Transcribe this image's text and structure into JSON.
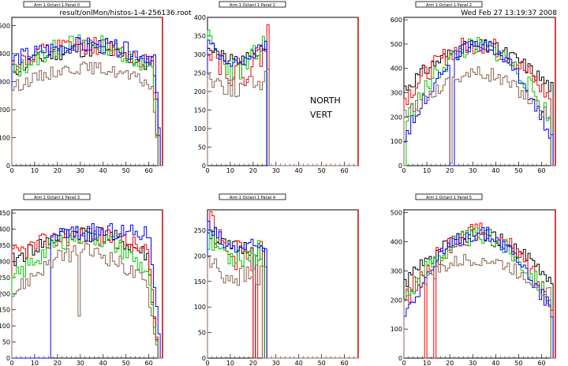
{
  "header": {
    "filename": "result/onlMon/histos-1-4-256136.root",
    "timestamp": "Wed Feb 27 13:19:37 2008"
  },
  "annotations": {
    "line1": "NORTH",
    "line2": "VERT"
  },
  "colors": {
    "black": "#000000",
    "red": "#ff0000",
    "green": "#00c800",
    "blue": "#0000ff",
    "brown": "#8b6450",
    "frame_right": "#c80000"
  },
  "chart_data": [
    {
      "type": "line",
      "title": "Arm 1 Octant 1 Panel 0",
      "xlim": [
        0,
        66
      ],
      "ylim": [
        0,
        530
      ],
      "xticks": [
        0,
        10,
        20,
        30,
        40,
        50,
        60
      ],
      "yticks": [
        0,
        100,
        200,
        300,
        400,
        500
      ],
      "series": [
        {
          "color": "black",
          "shape": "arch",
          "start": 0,
          "end": 65,
          "plateau": 415,
          "edge": 340,
          "noise": 28,
          "tail": 2,
          "seed": 11,
          "dips": []
        },
        {
          "color": "red",
          "shape": "arch",
          "start": 0,
          "end": 64,
          "plateau": 430,
          "edge": 360,
          "noise": 32,
          "tail": 2,
          "seed": 12,
          "dips": []
        },
        {
          "color": "green",
          "shape": "arch",
          "start": 0,
          "end": 64,
          "plateau": 440,
          "edge": 330,
          "noise": 34,
          "tail": 2,
          "seed": 13,
          "dips": []
        },
        {
          "color": "blue",
          "shape": "arch",
          "start": 0,
          "end": 65,
          "plateau": 430,
          "edge": 380,
          "noise": 30,
          "tail": 2,
          "seed": 14,
          "dips": []
        },
        {
          "color": "brown",
          "shape": "arch",
          "start": 0,
          "end": 64,
          "plateau": 350,
          "edge": 280,
          "noise": 22,
          "tail": 2,
          "seed": 15,
          "dips": []
        }
      ]
    },
    {
      "type": "line",
      "title": "Arm 1 Octant 1 Panel 1",
      "xlim": [
        0,
        66
      ],
      "ylim": [
        0,
        400
      ],
      "xticks": [
        0,
        10,
        20,
        30,
        40,
        50,
        60
      ],
      "yticks": [
        0,
        50,
        100,
        150,
        200,
        250,
        300,
        350,
        400
      ],
      "series": [
        {
          "color": "black",
          "shape": "bowl",
          "start": 0,
          "end": 26,
          "plateau": 280,
          "edge": 325,
          "noise": 18,
          "tail": 0,
          "seed": 21,
          "dips": []
        },
        {
          "color": "red",
          "shape": "bowl",
          "start": 0,
          "end": 27,
          "plateau": 250,
          "edge": 330,
          "noise": 40,
          "tail": 0,
          "seed": 22,
          "dips": [],
          "spike": [
            26,
            380
          ]
        },
        {
          "color": "green",
          "shape": "bowl",
          "start": 0,
          "end": 26,
          "plateau": 260,
          "edge": 335,
          "noise": 35,
          "tail": 0,
          "seed": 23,
          "dips": []
        },
        {
          "color": "blue",
          "shape": "bowl",
          "start": 0,
          "end": 26,
          "plateau": 280,
          "edge": 330,
          "noise": 16,
          "tail": 0,
          "seed": 24,
          "dips": []
        },
        {
          "color": "brown",
          "shape": "bowl",
          "start": 0,
          "end": 27,
          "plateau": 210,
          "edge": 240,
          "noise": 28,
          "tail": 0,
          "seed": 25,
          "dips": [],
          "spike": [
            26,
            260
          ]
        }
      ]
    },
    {
      "type": "line",
      "title": "Arm 1 Octant 1 Panel 2",
      "xlim": [
        0,
        66
      ],
      "ylim": [
        0,
        610
      ],
      "xticks": [
        0,
        10,
        20,
        30,
        40,
        50,
        60
      ],
      "yticks": [
        0,
        100,
        200,
        300,
        400,
        500,
        600
      ],
      "series": [
        {
          "color": "black",
          "shape": "arch",
          "start": 0,
          "end": 65,
          "plateau": 490,
          "edge": 320,
          "noise": 30,
          "tail": 0,
          "seed": 31,
          "dips": []
        },
        {
          "color": "red",
          "shape": "arch",
          "start": 0,
          "end": 64,
          "plateau": 500,
          "edge": 280,
          "noise": 40,
          "tail": 0,
          "seed": 32,
          "dips": []
        },
        {
          "color": "green",
          "shape": "arch",
          "start": 1,
          "end": 64,
          "plateau": 490,
          "edge": 200,
          "noise": 40,
          "tail": 0,
          "seed": 33,
          "dips": []
        },
        {
          "color": "blue",
          "shape": "arch",
          "start": 0,
          "end": 65,
          "plateau": 500,
          "edge": 120,
          "noise": 30,
          "tail": 0,
          "seed": 34,
          "dips": [
            [
              20,
              22,
              0
            ]
          ]
        },
        {
          "color": "brown",
          "shape": "arch",
          "start": 0,
          "end": 64,
          "plateau": 380,
          "edge": 200,
          "noise": 30,
          "tail": 0,
          "seed": 35,
          "dips": [
            [
              20,
              21,
              10
            ]
          ]
        }
      ]
    },
    {
      "type": "line",
      "title": "Arm 1 Octant 1 Panel 3",
      "xlim": [
        0,
        66
      ],
      "ylim": [
        0,
        460
      ],
      "xticks": [
        0,
        10,
        20,
        30,
        40,
        50,
        60
      ],
      "yticks": [
        0,
        50,
        100,
        150,
        200,
        250,
        300,
        350,
        400,
        450
      ],
      "series": [
        {
          "color": "black",
          "shape": "arch",
          "start": 0,
          "end": 64,
          "plateau": 390,
          "edge": 300,
          "noise": 26,
          "tail": 4,
          "seed": 41,
          "dips": []
        },
        {
          "color": "red",
          "shape": "arch",
          "start": 0,
          "end": 64,
          "plateau": 380,
          "edge": 320,
          "noise": 30,
          "tail": 4,
          "seed": 42,
          "dips": []
        },
        {
          "color": "green",
          "shape": "arch",
          "start": 0,
          "end": 64,
          "plateau": 380,
          "edge": 240,
          "noise": 30,
          "tail": 4,
          "seed": 43,
          "dips": []
        },
        {
          "color": "blue",
          "shape": "arch",
          "start": 17,
          "end": 65,
          "plateau": 390,
          "edge": 380,
          "noise": 28,
          "tail": 4,
          "seed": 44,
          "dips": []
        },
        {
          "color": "brown",
          "shape": "arch",
          "start": 0,
          "end": 64,
          "plateau": 330,
          "edge": 200,
          "noise": 26,
          "tail": 4,
          "seed": 45,
          "dips": [
            [
              29,
              30,
              130
            ]
          ]
        }
      ]
    },
    {
      "type": "line",
      "title": "Arm 1 Octant 1 Panel 4",
      "xlim": [
        0,
        66
      ],
      "ylim": [
        0,
        290
      ],
      "xticks": [
        0,
        10,
        20,
        30,
        40,
        50,
        60
      ],
      "yticks": [
        0,
        50,
        100,
        150,
        200,
        250
      ],
      "series": [
        {
          "color": "black",
          "shape": "flat",
          "start": 0,
          "end": 25,
          "plateau": 215,
          "edge": 250,
          "noise": 16,
          "tail": 0,
          "seed": 51,
          "dips": [
            [
              20,
              21,
              0
            ]
          ]
        },
        {
          "color": "red",
          "shape": "flat",
          "start": 0,
          "end": 26,
          "plateau": 200,
          "edge": 270,
          "noise": 30,
          "tail": 0,
          "seed": 52,
          "dips": [
            [
              20,
              22,
              0
            ],
            [
              24,
              25,
              0
            ]
          ]
        },
        {
          "color": "green",
          "shape": "flat",
          "start": 0,
          "end": 25,
          "plateau": 205,
          "edge": 240,
          "noise": 28,
          "tail": 0,
          "seed": 53,
          "dips": []
        },
        {
          "color": "blue",
          "shape": "flat",
          "start": 0,
          "end": 26,
          "plateau": 215,
          "edge": 255,
          "noise": 18,
          "tail": 0,
          "seed": 54,
          "dips": []
        },
        {
          "color": "brown",
          "shape": "flat",
          "start": 0,
          "end": 24,
          "plateau": 160,
          "edge": 190,
          "noise": 22,
          "tail": 0,
          "seed": 55,
          "dips": []
        }
      ]
    },
    {
      "type": "line",
      "title": "Arm 1 Octant 1 Panel 5",
      "xlim": [
        0,
        66
      ],
      "ylim": [
        0,
        510
      ],
      "xticks": [
        0,
        10,
        20,
        30,
        40,
        50,
        60
      ],
      "yticks": [
        0,
        100,
        200,
        300,
        400,
        500
      ],
      "series": [
        {
          "color": "black",
          "shape": "arch",
          "start": 0,
          "end": 65,
          "plateau": 420,
          "edge": 260,
          "noise": 26,
          "tail": 0,
          "seed": 61,
          "dips": []
        },
        {
          "color": "red",
          "shape": "arch",
          "start": 0,
          "end": 65,
          "plateau": 430,
          "edge": 200,
          "noise": 36,
          "tail": 0,
          "seed": 62,
          "dips": [
            [
              9,
              10,
              0
            ],
            [
              13,
              14,
              0
            ]
          ]
        },
        {
          "color": "green",
          "shape": "arch",
          "start": 0,
          "end": 64,
          "plateau": 420,
          "edge": 210,
          "noise": 34,
          "tail": 0,
          "seed": 63,
          "dips": []
        },
        {
          "color": "blue",
          "shape": "arch",
          "start": 0,
          "end": 65,
          "plateau": 430,
          "edge": 160,
          "noise": 28,
          "tail": 0,
          "seed": 64,
          "dips": []
        },
        {
          "color": "brown",
          "shape": "arch",
          "start": 0,
          "end": 64,
          "plateau": 340,
          "edge": 220,
          "noise": 24,
          "tail": 0,
          "seed": 65,
          "dips": []
        }
      ]
    }
  ]
}
